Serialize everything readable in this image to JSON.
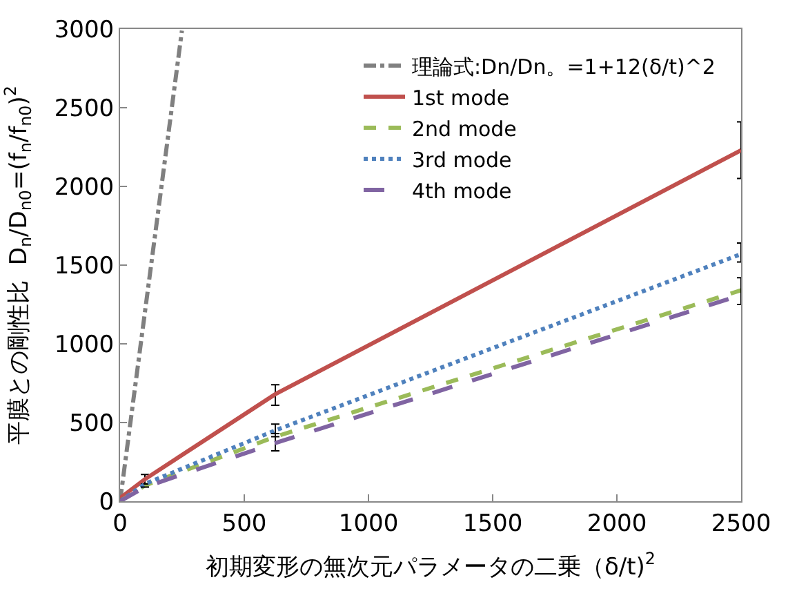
{
  "chart_data": {
    "type": "line",
    "xlabel": "初期変形の無次元パラメータの二乗（δ/t)$^{2}$",
    "ylabel": "平膜との剛性比  D$_{n}$/D$_{n0}$=(f$_{n}$/f$_{n0}$)$^{2}$",
    "xlim": [
      0,
      2500
    ],
    "xticks": [
      0,
      500,
      1000,
      1500,
      2000,
      2500
    ],
    "ylim": [
      0,
      3000
    ],
    "yticks": [
      0,
      500,
      1000,
      1500,
      2000,
      2500,
      3000
    ],
    "legend": "top right",
    "marker": "none",
    "series": [
      {
        "name": "理論式:Dn/Dn。=1+12(δ/t)^2",
        "color": "#808080",
        "line_style": "dashdot",
        "x": [
          0,
          50,
          100,
          150,
          200,
          249
        ],
        "values": [
          0,
          600,
          1200,
          1800,
          2400,
          2990
        ]
      },
      {
        "name": "1st mode",
        "color": "#c0504d",
        "line_style": "solid",
        "x": [
          0,
          100,
          625,
          2500
        ],
        "values": [
          20,
          140,
          680,
          2230
        ],
        "errors": [
          null,
          [
            100,
            170
          ],
          [
            610,
            740
          ],
          [
            2050,
            2410
          ]
        ]
      },
      {
        "name": "2nd mode",
        "color": "#9bbb59",
        "line_style": "dashed",
        "x": [
          0,
          100,
          625,
          2500
        ],
        "values": [
          0,
          100,
          410,
          1340
        ]
      },
      {
        "name": "3rd mode",
        "color": "#4f81bd",
        "line_style": "dotted",
        "x": [
          0,
          100,
          625,
          2500
        ],
        "values": [
          0,
          110,
          450,
          1570
        ],
        "errors": [
          null,
          null,
          [
            410,
            490
          ],
          [
            1520,
            1640
          ]
        ]
      },
      {
        "name": "4th mode",
        "color": "#8064a2",
        "line_style": "longdash",
        "x": [
          0,
          100,
          625,
          2500
        ],
        "values": [
          0,
          90,
          370,
          1310
        ],
        "errors": [
          null,
          null,
          [
            320,
            430
          ],
          [
            1250,
            1420
          ]
        ]
      }
    ]
  }
}
